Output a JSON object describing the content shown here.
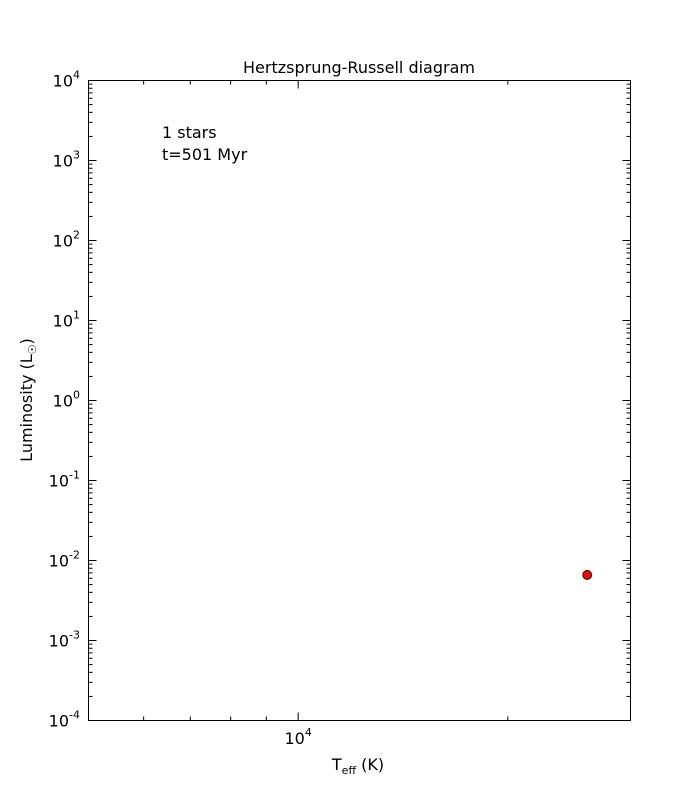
{
  "chart_data": {
    "type": "scatter",
    "title": "Hertzsprung-Russell diagram",
    "xlabel": {
      "base": "T",
      "sub": "eff",
      "unit": " (K)"
    },
    "ylabel": {
      "text": "Luminosity (L",
      "sub": "☉",
      "close": ")"
    },
    "x_scale": "log",
    "y_scale": "log",
    "xlim": [
      5000,
      30000
    ],
    "ylim": [
      0.0001,
      10000
    ],
    "x_ticks": [
      {
        "value": 10000,
        "base": "10",
        "exp": "4"
      }
    ],
    "y_ticks": [
      {
        "value": 10000,
        "base": "10",
        "exp": "4"
      },
      {
        "value": 1000,
        "base": "10",
        "exp": "3"
      },
      {
        "value": 100,
        "base": "10",
        "exp": "2"
      },
      {
        "value": 10,
        "base": "10",
        "exp": "1"
      },
      {
        "value": 1,
        "base": "10",
        "exp": "0"
      },
      {
        "value": 0.1,
        "base": "10",
        "exp": "-1"
      },
      {
        "value": 0.01,
        "base": "10",
        "exp": "-2"
      },
      {
        "value": 0.001,
        "base": "10",
        "exp": "-3"
      },
      {
        "value": 0.0001,
        "base": "10",
        "exp": "-4"
      }
    ],
    "annotations": [
      "1 stars",
      "t=501 Myr"
    ],
    "points": [
      {
        "x": 26000,
        "y": 0.0066
      }
    ],
    "marker_color": "#ff0000",
    "grid": false,
    "legend": "none"
  }
}
